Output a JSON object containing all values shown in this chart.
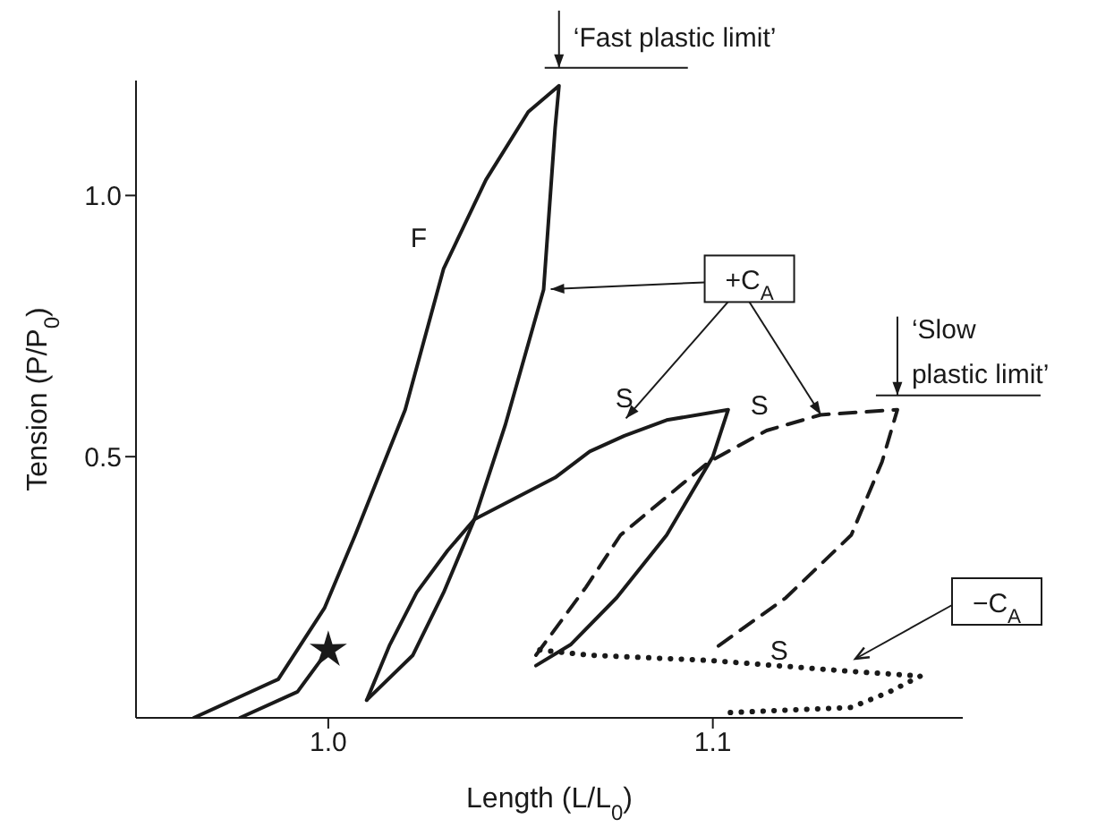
{
  "chart_data": {
    "type": "line",
    "xlabel": "Length (L/L$_{0}$)",
    "ylabel": "Tension (P/P$_{0}$)",
    "xlim": [
      0.95,
      1.165
    ],
    "xticks": [
      {
        "value": 1.0,
        "label": "1.0"
      },
      1.1
    ],
    "ylim": [
      0,
      1.22
    ],
    "yticks": [
      0.5,
      {
        "value": 1.0,
        "label": "1.0"
      }
    ],
    "series": [
      {
        "name": "F",
        "color": "#1a1a1a",
        "line_style": "solid",
        "marker": "none",
        "x": [
          0.965,
          0.987,
          0.999,
          1.007,
          1.02,
          1.03,
          1.041,
          1.052,
          1.06,
          1.059,
          1.056,
          1.046,
          1.038,
          1.03,
          1.022,
          1.01
        ],
        "values": [
          0,
          0.074,
          0.21,
          0.35,
          0.59,
          0.86,
          1.03,
          1.16,
          1.21,
          1.13,
          0.82,
          0.56,
          0.38,
          0.24,
          0.12,
          0.034
        ]
      },
      {
        "name": "S",
        "color": "#1a1a1a",
        "line_style": "solid",
        "marker": "none",
        "x": [
          1.01,
          1.016,
          1.023,
          1.031,
          1.038,
          1.059,
          1.068,
          1.077,
          1.088,
          1.104,
          1.1,
          1.088,
          1.075,
          1.063,
          1.054
        ],
        "values": [
          0.034,
          0.14,
          0.24,
          0.32,
          0.38,
          0.46,
          0.51,
          0.54,
          0.57,
          0.59,
          0.5,
          0.35,
          0.23,
          0.14,
          0.1
        ]
      },
      {
        "color": "#1a1a1a",
        "line_style": "solid",
        "marker": "none",
        "x": [
          0.977,
          0.992,
          1.0
        ],
        "values": [
          0,
          0.05,
          0.13
        ]
      },
      {
        "name": "S",
        "color": "#1a1a1a",
        "line_style": "dashed",
        "marker": "none",
        "x": [
          1.054,
          1.067,
          1.076,
          1.099,
          1.114,
          1.128,
          1.148,
          1.144,
          1.136,
          1.119,
          1.1
        ],
        "values": [
          0.12,
          0.25,
          0.35,
          0.49,
          0.55,
          0.58,
          0.59,
          0.49,
          0.35,
          0.23,
          0.13
        ]
      },
      {
        "name": "S",
        "color": "#1a1a1a",
        "line_style": "dotted",
        "marker": "none",
        "x": [
          1.055,
          1.068,
          1.099,
          1.134,
          1.154,
          1.146,
          1.136,
          1.104
        ],
        "values": [
          0.13,
          0.12,
          0.11,
          0.09,
          0.08,
          0.05,
          0.02,
          0.01
        ]
      },
      {
        "type": "scatter",
        "color": "#1a1a1a",
        "marker": "star",
        "x": [
          1.0
        ],
        "values": [
          0.13
        ]
      }
    ],
    "annotations": [
      {
        "text": "‘Fast plastic limit’",
        "x": 1.06,
        "y": 1.21
      },
      {
        "text": "‘Slow plastic limit’",
        "x": 1.148,
        "y": 0.59
      },
      {
        "text": "+C$_{A}$",
        "x": 1.056,
        "y": 0.82
      },
      "−C$_{A}$"
    ]
  }
}
